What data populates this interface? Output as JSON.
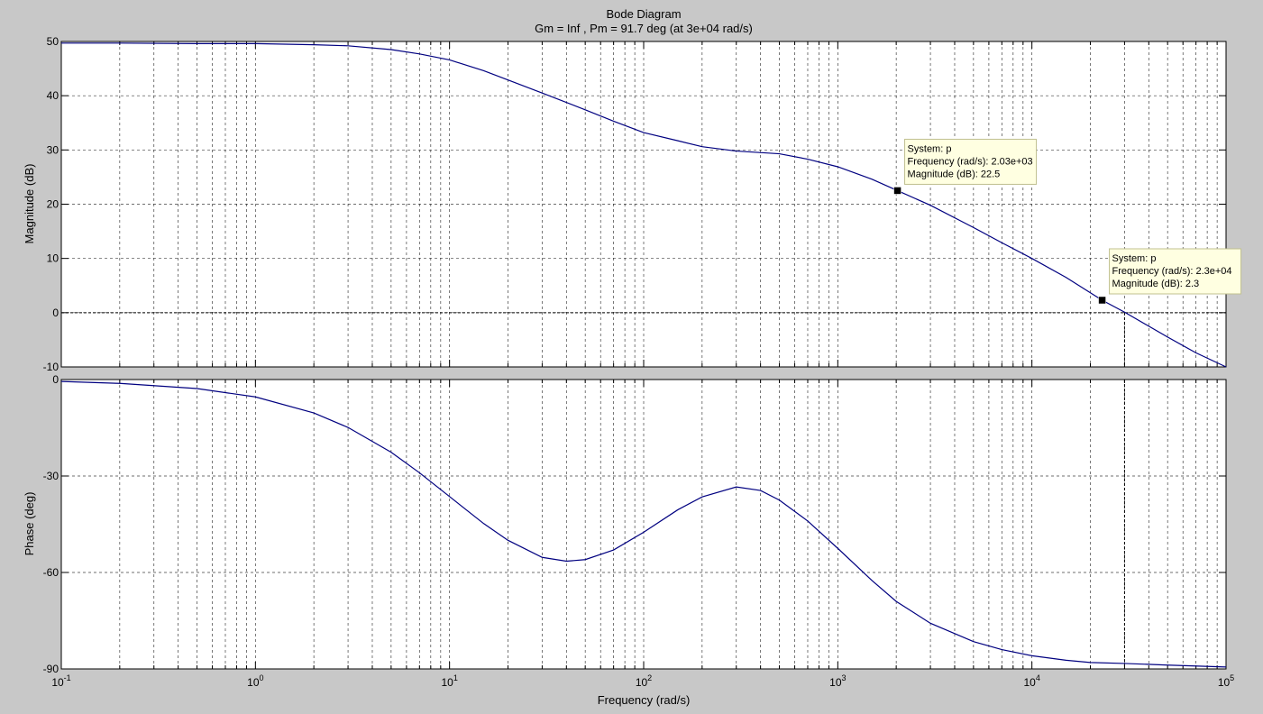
{
  "colors": {
    "figure_bg": "#c8c8c8",
    "axes_bg": "#ffffff",
    "line": "#000080",
    "grid": "#000000",
    "datatip_bg": "#ffffe1",
    "datatip_border": "#c0c090"
  },
  "title": "Bode Diagram",
  "subtitle": "Gm = Inf ,  Pm = 91.7 deg (at 3e+04 rad/s)",
  "chart_data": [
    {
      "id": "magnitude",
      "type": "line",
      "xscale": "log",
      "xlim": [
        0.1,
        100000
      ],
      "ylim": [
        -10,
        50
      ],
      "xlabel": "Frequency  (rad/s)",
      "ylabel": "Magnitude (dB)",
      "grid": true,
      "yticks": [
        "50",
        "40",
        "30",
        "20",
        "10",
        "0",
        "-10"
      ],
      "ytick_values": [
        50,
        40,
        30,
        20,
        10,
        0,
        -10
      ],
      "series": [
        {
          "x": [
            0.1,
            0.2,
            0.5,
            1,
            2,
            3,
            5,
            7,
            10,
            15,
            20,
            30,
            50,
            70,
            100,
            150,
            200,
            300,
            500,
            700,
            1000,
            1500,
            2030,
            3000,
            5000,
            7000,
            10000,
            15000,
            23000,
            30000,
            50000,
            70000,
            100000
          ],
          "y": [
            49.7,
            49.7,
            49.6,
            49.6,
            49.4,
            49.2,
            48.5,
            47.7,
            46.6,
            44.6,
            42.9,
            40.5,
            37.4,
            35.3,
            33.2,
            31.7,
            30.6,
            29.8,
            29.3,
            28.3,
            26.9,
            24.6,
            22.5,
            19.8,
            15.7,
            12.9,
            10.0,
            6.5,
            2.3,
            0.1,
            -4.5,
            -7.4,
            -10.3
          ]
        }
      ],
      "datatips": [
        {
          "x": 2030,
          "y": 22.5,
          "system": "System: p",
          "freq": "Frequency (rad/s): 2.03e+03",
          "mag": "Magnitude (dB): 22.5"
        },
        {
          "x": 23000,
          "y": 2.3,
          "system": "System: p",
          "freq": "Frequency (rad/s): 2.3e+04",
          "mag": "Magnitude (dB): 2.3"
        }
      ],
      "reference_lines": {
        "y": [
          0
        ],
        "x": [
          30000
        ]
      }
    },
    {
      "id": "phase",
      "type": "line",
      "xscale": "log",
      "xlim": [
        0.1,
        100000
      ],
      "ylim": [
        -90,
        0
      ],
      "xlabel": "Frequency  (rad/s)",
      "ylabel": "Phase (deg)",
      "grid": true,
      "yticks": [
        "0",
        "-30",
        "-60",
        "-90"
      ],
      "ytick_values": [
        0,
        -30,
        -60,
        -90
      ],
      "xticks": [
        {
          "value": 0.1,
          "base": "10",
          "exp": "-1"
        },
        {
          "value": 1,
          "base": "10",
          "exp": "0"
        },
        {
          "value": 10,
          "base": "10",
          "exp": "1"
        },
        {
          "value": 100,
          "base": "10",
          "exp": "2"
        },
        {
          "value": 1000,
          "base": "10",
          "exp": "3"
        },
        {
          "value": 10000,
          "base": "10",
          "exp": "4"
        },
        {
          "value": 100000,
          "base": "10",
          "exp": "5"
        }
      ],
      "series": [
        {
          "x": [
            0.1,
            0.2,
            0.5,
            1,
            2,
            3,
            5,
            7,
            10,
            15,
            20,
            30,
            40,
            50,
            70,
            100,
            150,
            200,
            300,
            400,
            500,
            700,
            1000,
            1500,
            2000,
            3000,
            5000,
            7000,
            10000,
            15000,
            20000,
            30000,
            50000,
            100000
          ],
          "y": [
            -0.6,
            -1.2,
            -2.8,
            -5.4,
            -10.4,
            -14.9,
            -22.6,
            -29.0,
            -36.4,
            -44.8,
            -50.0,
            -55.3,
            -56.5,
            -56.0,
            -53.0,
            -47.5,
            -40.5,
            -36.5,
            -33.4,
            -34.5,
            -37.5,
            -44.0,
            -52.5,
            -62.5,
            -69.0,
            -75.8,
            -81.5,
            -84.0,
            -85.9,
            -87.3,
            -88.0,
            -88.3,
            -88.8,
            -89.4
          ]
        }
      ],
      "reference_lines": {
        "x": [
          30000
        ]
      }
    }
  ]
}
